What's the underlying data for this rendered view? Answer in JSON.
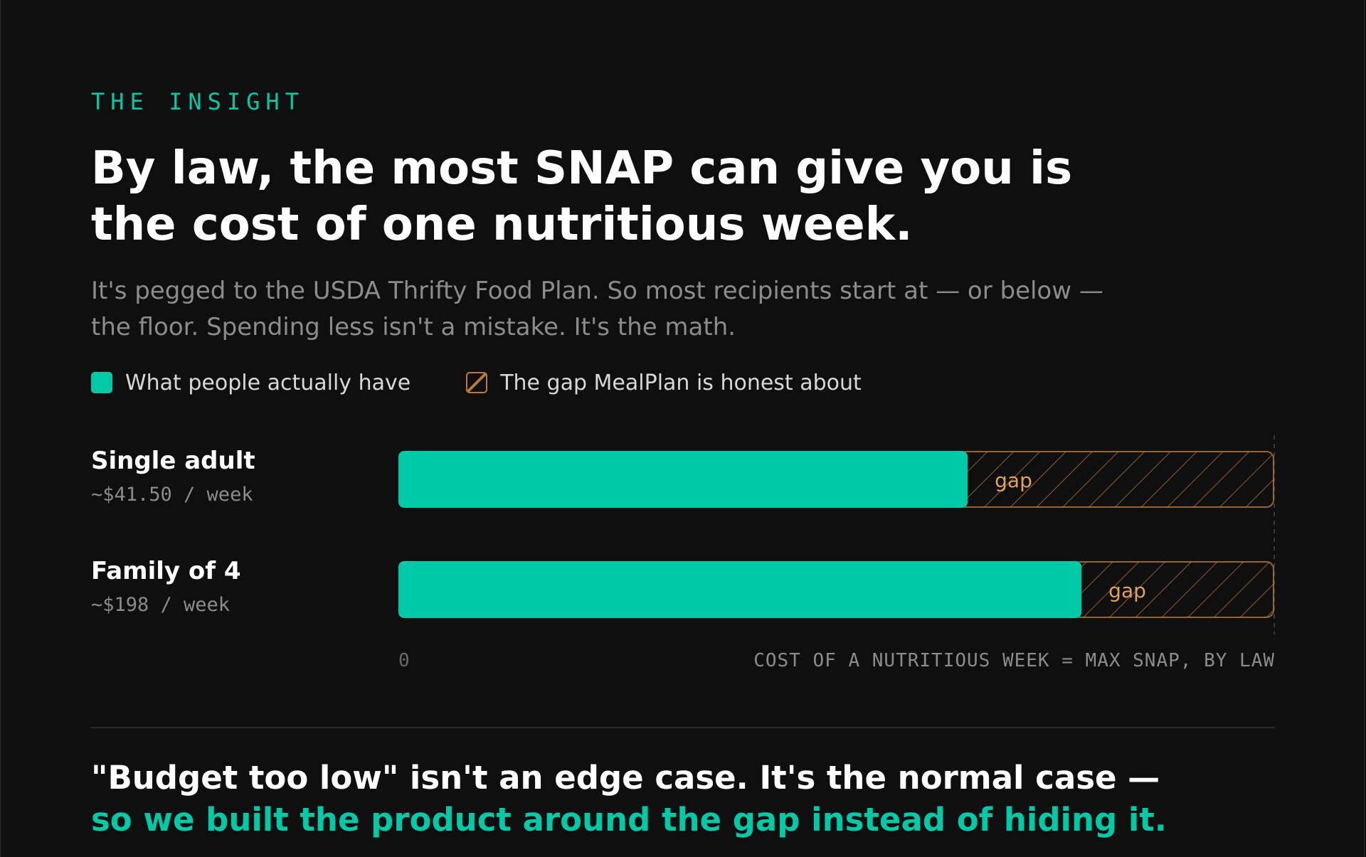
{
  "eyebrow": "THE INSIGHT",
  "headline": {
    "line1": "By law, the most SNAP can give you is",
    "line2": "the cost of one nutritious week."
  },
  "subtitle": {
    "line1": "It's pegged to the USDA Thrifty Food Plan. So most recipients start at — or below —",
    "line2": "the floor. Spending less isn't a mistake. It's the math."
  },
  "legend": {
    "have_label": "What people actually have",
    "gap_label": "The gap MealPlan is honest about"
  },
  "chart_data": {
    "type": "bar",
    "orientation": "horizontal",
    "categories": [
      "Single adult",
      "Family of 4"
    ],
    "value_labels": [
      "~$41.50 / week",
      "~$198 / week"
    ],
    "series": [
      {
        "name": "What people actually have",
        "values": [
          0.65,
          0.78
        ]
      },
      {
        "name": "The gap MealPlan is honest about",
        "values": [
          0.35,
          0.22
        ]
      }
    ],
    "gap_label": "gap",
    "xlim": [
      0,
      1
    ],
    "axis_min_label": "0",
    "axis_max_label": "COST OF A NUTRITIOUS WEEK = MAX SNAP, BY LAW",
    "colors": {
      "have": "#00c9a7",
      "gap": "#b77c3c",
      "gap_text": "#e0a060"
    }
  },
  "takeaway": {
    "line1": "\"Budget too low\" isn't an edge case. It's the normal case —",
    "line2": "so we built the product around the gap instead of hiding it."
  }
}
